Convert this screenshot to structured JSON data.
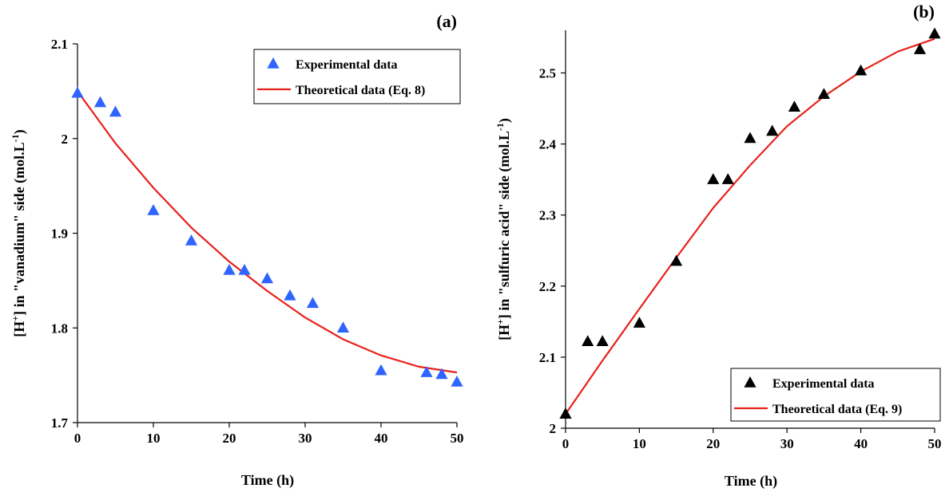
{
  "chart_data": [
    {
      "type": "scatter",
      "panel_label": "(a)",
      "xlabel": "Time (h)",
      "ylabel_parts": {
        "pre": "[H",
        "sup": "+",
        "mid": "] in \"vanadium\" side (mol.L",
        "sup2": "-1",
        "post": ")"
      },
      "xlim": [
        0,
        50
      ],
      "ylim": [
        1.7,
        2.1
      ],
      "xticks": [
        "0",
        "10",
        "20",
        "30",
        "40",
        "50"
      ],
      "yticks": [
        "1.7",
        "1.8",
        "1.9",
        "2",
        "2.1"
      ],
      "legend_position": "top-right",
      "series": [
        {
          "name": "Experimental data",
          "kind": "markers",
          "marker": "triangle",
          "color": "#2e64ff",
          "x": [
            0,
            3,
            5,
            10,
            15,
            20,
            22,
            25,
            28,
            31,
            35,
            40,
            46,
            48,
            50
          ],
          "y": [
            2.048,
            2.038,
            2.028,
            1.924,
            1.892,
            1.861,
            1.861,
            1.852,
            1.834,
            1.826,
            1.8,
            1.755,
            1.753,
            1.751,
            1.743
          ]
        },
        {
          "name": "Theoretical data (Eq. 8)",
          "kind": "line",
          "color": "#e8211b",
          "x": [
            0,
            5,
            10,
            15,
            20,
            25,
            30,
            35,
            40,
            45,
            50
          ],
          "y": [
            2.05,
            1.995,
            1.948,
            1.906,
            1.87,
            1.839,
            1.811,
            1.788,
            1.771,
            1.759,
            1.753
          ]
        }
      ]
    },
    {
      "type": "scatter",
      "panel_label": "(b)",
      "xlabel": "Time (h)",
      "ylabel_parts": {
        "pre": "[H",
        "sup": "+",
        "mid": "] in \"sulfuric acid\" side (mol.L",
        "sup2": "-1",
        "post": ")"
      },
      "xlim": [
        0,
        50
      ],
      "ylim": [
        2.0,
        2.56
      ],
      "xticks": [
        "0",
        "10",
        "20",
        "30",
        "40",
        "50"
      ],
      "yticks": [
        "2",
        "2.1",
        "2.2",
        "2.3",
        "2.4",
        "2.5"
      ],
      "legend_position": "bottom-right",
      "series": [
        {
          "name": "Experimental data",
          "kind": "markers",
          "marker": "triangle",
          "color": "#000000",
          "x": [
            0,
            3,
            5,
            10,
            15,
            20,
            22,
            25,
            28,
            31,
            35,
            40,
            48,
            50
          ],
          "y": [
            2.02,
            2.122,
            2.122,
            2.148,
            2.235,
            2.35,
            2.35,
            2.408,
            2.418,
            2.452,
            2.47,
            2.503,
            2.533,
            2.555
          ]
        },
        {
          "name": "Theoretical data (Eq. 9)",
          "kind": "line",
          "color": "#e8211b",
          "x": [
            0,
            5,
            10,
            15,
            20,
            25,
            30,
            35,
            40,
            45,
            50
          ],
          "y": [
            2.02,
            2.095,
            2.168,
            2.24,
            2.31,
            2.37,
            2.425,
            2.467,
            2.502,
            2.53,
            2.548
          ]
        }
      ]
    }
  ]
}
